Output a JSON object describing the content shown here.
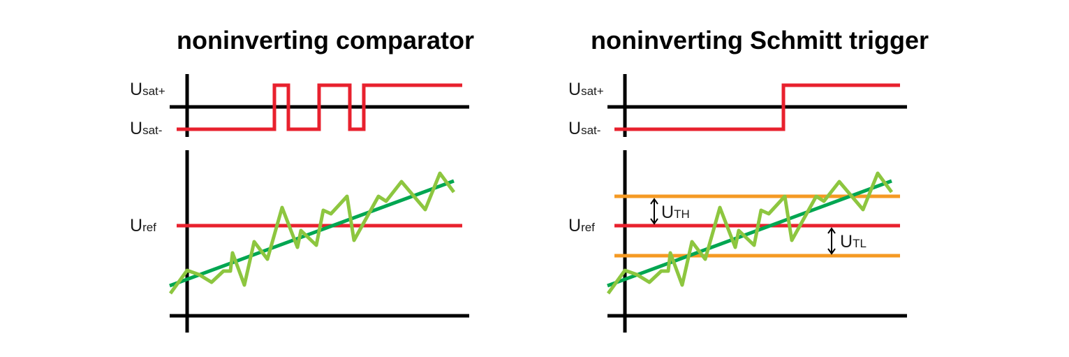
{
  "left": {
    "title": "noninverting comparator",
    "labels": {
      "usat_plus_main": "U",
      "usat_plus_sub": "sat+",
      "usat_minus_main": "U",
      "usat_minus_sub": "sat-",
      "uref_main": "U",
      "uref_sub": "ref"
    }
  },
  "right": {
    "title": "noninverting Schmitt trigger",
    "labels": {
      "usat_plus_main": "U",
      "usat_plus_sub": "sat+",
      "usat_minus_main": "U",
      "usat_minus_sub": "sat-",
      "uref_main": "U",
      "uref_sub": "ref",
      "uth_main": "U",
      "uth_sub": "TH",
      "utl_main": "U",
      "utl_sub": "TL"
    }
  },
  "colors": {
    "output": "#e8212e",
    "reference": "#e8212e",
    "threshold": "#f59a23",
    "trend": "#00a651",
    "signal": "#8dc63f",
    "axis": "#000000"
  }
}
